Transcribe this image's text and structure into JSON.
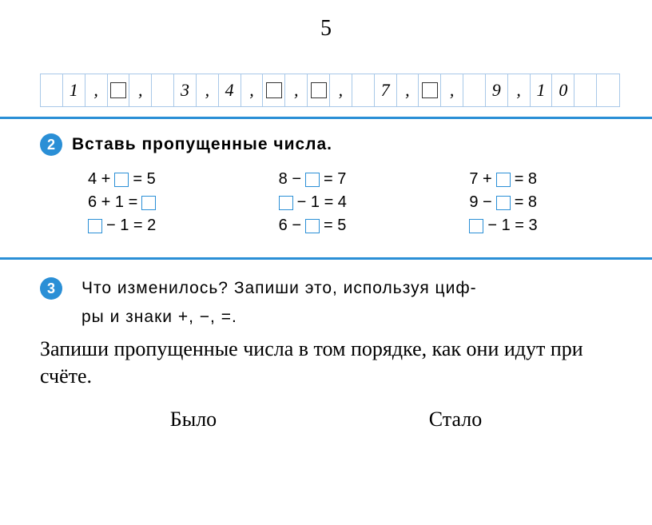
{
  "page_number": "5",
  "colors": {
    "accent": "#2a8fd6",
    "grid": "#a8c8e8",
    "text": "#000000",
    "bg": "#ffffff"
  },
  "number_row": {
    "cells": [
      {
        "t": "",
        "box": false
      },
      {
        "t": "1",
        "box": false
      },
      {
        "t": ",",
        "box": false
      },
      {
        "t": "",
        "box": true
      },
      {
        "t": ",",
        "box": false
      },
      {
        "t": "",
        "box": false
      },
      {
        "t": "3",
        "box": false
      },
      {
        "t": ",",
        "box": false
      },
      {
        "t": "4",
        "box": false
      },
      {
        "t": ",",
        "box": false
      },
      {
        "t": "",
        "box": true
      },
      {
        "t": ",",
        "box": false
      },
      {
        "t": "",
        "box": true
      },
      {
        "t": ",",
        "box": false
      },
      {
        "t": "",
        "box": false
      },
      {
        "t": "7",
        "box": false
      },
      {
        "t": ",",
        "box": false
      },
      {
        "t": "",
        "box": true
      },
      {
        "t": ",",
        "box": false
      },
      {
        "t": "",
        "box": false
      },
      {
        "t": "9",
        "box": false
      },
      {
        "t": ",",
        "box": false
      },
      {
        "t": "1",
        "box": false
      },
      {
        "t": "0",
        "box": false
      },
      {
        "t": "",
        "box": false
      },
      {
        "t": "",
        "box": false
      }
    ]
  },
  "ex2": {
    "badge": "2",
    "title": "Вставь  пропущенные  числа.",
    "rows": [
      [
        [
          "4 + ",
          "□",
          " = 5"
        ],
        [
          "8 − ",
          "□",
          " = 7"
        ],
        [
          "7 + ",
          "□",
          " = 8"
        ]
      ],
      [
        [
          "6 + 1 = ",
          "□",
          ""
        ],
        [
          "",
          "□",
          " − 1 = 4"
        ],
        [
          "9 − ",
          "□",
          " = 8"
        ]
      ],
      [
        [
          "",
          "□",
          " − 1 = 2"
        ],
        [
          "6 − ",
          "□",
          " = 5"
        ],
        [
          "",
          "□",
          " − 1 = 3"
        ]
      ]
    ]
  },
  "ex3": {
    "badge": "3",
    "text_line1": "Что  изменилось?  Запиши  это,  используя  циф-",
    "text_line2": "ры  и  знаки  +,  −,  =."
  },
  "overlay": "Запиши пропущенные числа в том порядке, как они идут при счёте.",
  "bottom": {
    "left": "Было",
    "right": "Стало"
  }
}
